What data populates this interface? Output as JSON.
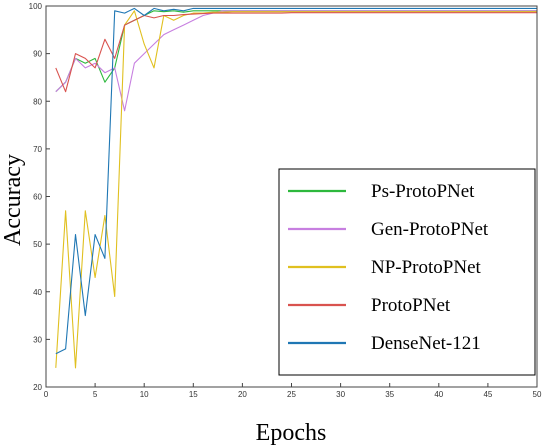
{
  "chart_data": {
    "type": "line",
    "title": "",
    "xlabel": "Epochs",
    "ylabel": "Accuracy",
    "xlim": [
      0,
      50
    ],
    "ylim": [
      20,
      100
    ],
    "xticks": [
      0,
      5,
      10,
      15,
      20,
      25,
      30,
      35,
      40,
      45,
      50
    ],
    "yticks": [
      20,
      30,
      40,
      50,
      60,
      70,
      80,
      90,
      100
    ],
    "grid": false,
    "legend_position": "bottom-right",
    "series": [
      {
        "name": "Ps-ProtoPNet",
        "color": "#2db83d",
        "x": [
          1,
          2,
          3,
          4,
          5,
          6,
          7,
          8,
          9,
          10,
          11,
          12,
          13,
          14,
          15,
          16,
          17,
          18,
          19,
          20,
          21,
          22,
          23,
          24,
          25,
          26,
          27,
          28,
          29,
          30,
          31,
          32,
          33,
          34,
          35,
          36,
          37,
          38,
          39,
          40,
          41,
          42,
          43,
          44,
          45,
          46,
          47,
          48,
          49,
          50
        ],
        "y": [
          82,
          84,
          89,
          88,
          89,
          84,
          87,
          96,
          97,
          98,
          99,
          98.8,
          99,
          98.7,
          99,
          99,
          99,
          99,
          99,
          99,
          99,
          99,
          99,
          99,
          99,
          99,
          99,
          99,
          99,
          99,
          99,
          99,
          99,
          99,
          99,
          99,
          99,
          99,
          99,
          99,
          99,
          99,
          99,
          99,
          99,
          99,
          99,
          99,
          99,
          99
        ]
      },
      {
        "name": "Gen-ProtoPNet",
        "color": "#c77fe0",
        "x": [
          1,
          2,
          3,
          4,
          5,
          6,
          7,
          8,
          9,
          10,
          11,
          12,
          13,
          14,
          15,
          16,
          17,
          18,
          19,
          20,
          21,
          22,
          23,
          24,
          25,
          26,
          27,
          28,
          29,
          30,
          31,
          32,
          33,
          34,
          35,
          36,
          37,
          38,
          39,
          40,
          41,
          42,
          43,
          44,
          45,
          46,
          47,
          48,
          49,
          50
        ],
        "y": [
          82,
          84,
          89,
          87,
          88,
          86,
          87,
          78,
          88,
          90,
          92,
          94,
          95,
          96,
          97,
          98,
          98.5,
          99,
          99,
          99,
          99,
          99,
          99,
          99,
          99,
          99,
          99,
          99,
          99,
          99,
          99,
          99,
          99,
          99,
          99,
          99,
          99,
          99,
          99,
          99,
          99,
          99,
          99,
          99,
          99,
          99,
          99,
          99,
          99,
          99
        ]
      },
      {
        "name": "NP-ProtoPNet",
        "color": "#e0c020",
        "x": [
          1,
          2,
          3,
          4,
          5,
          6,
          7,
          8,
          9,
          10,
          11,
          12,
          13,
          14,
          15,
          16,
          17,
          18,
          19,
          20,
          21,
          22,
          23,
          24,
          25,
          26,
          27,
          28,
          29,
          30,
          31,
          32,
          33,
          34,
          35,
          36,
          37,
          38,
          39,
          40,
          41,
          42,
          43,
          44,
          45,
          46,
          47,
          48,
          49,
          50
        ],
        "y": [
          24,
          57,
          24,
          57,
          43,
          56,
          39,
          96,
          99,
          92,
          87,
          98,
          97,
          98,
          98.5,
          98.5,
          98.7,
          98.7,
          98.8,
          98.8,
          98.8,
          98.8,
          98.8,
          98.8,
          98.8,
          98.8,
          98.8,
          98.8,
          98.8,
          98.8,
          98.8,
          98.8,
          98.8,
          98.8,
          98.8,
          98.8,
          98.8,
          98.8,
          98.8,
          98.8,
          98.8,
          98.8,
          98.8,
          98.8,
          98.8,
          98.8,
          98.8,
          98.8,
          98.8,
          98.8
        ]
      },
      {
        "name": "ProtoPNet",
        "color": "#d9534f",
        "x": [
          1,
          2,
          3,
          4,
          5,
          6,
          7,
          8,
          9,
          10,
          11,
          12,
          13,
          14,
          15,
          16,
          17,
          18,
          19,
          20,
          21,
          22,
          23,
          24,
          25,
          26,
          27,
          28,
          29,
          30,
          31,
          32,
          33,
          34,
          35,
          36,
          37,
          38,
          39,
          40,
          41,
          42,
          43,
          44,
          45,
          46,
          47,
          48,
          49,
          50
        ],
        "y": [
          87,
          82,
          90,
          89,
          87,
          93,
          89,
          96,
          97,
          98,
          97.5,
          98,
          98,
          98.2,
          98.3,
          98.4,
          98.5,
          98.5,
          98.5,
          98.5,
          98.5,
          98.5,
          98.5,
          98.5,
          98.6,
          98.6,
          98.6,
          98.6,
          98.6,
          98.6,
          98.6,
          98.6,
          98.6,
          98.6,
          98.6,
          98.6,
          98.6,
          98.6,
          98.6,
          98.6,
          98.6,
          98.6,
          98.6,
          98.6,
          98.6,
          98.6,
          98.6,
          98.6,
          98.6,
          98.6
        ]
      },
      {
        "name": "DenseNet-121",
        "color": "#1f77b4",
        "x": [
          1,
          2,
          3,
          4,
          5,
          6,
          7,
          8,
          9,
          10,
          11,
          12,
          13,
          14,
          15,
          16,
          17,
          18,
          19,
          20,
          21,
          22,
          23,
          24,
          25,
          26,
          27,
          28,
          29,
          30,
          31,
          32,
          33,
          34,
          35,
          36,
          37,
          38,
          39,
          40,
          41,
          42,
          43,
          44,
          45,
          46,
          47,
          48,
          49,
          50
        ],
        "y": [
          27,
          28,
          52,
          35,
          52,
          47,
          99,
          98.5,
          99.5,
          98,
          99.5,
          99,
          99.3,
          99,
          99.5,
          99.5,
          99.5,
          99.5,
          99.5,
          99.5,
          99.5,
          99.5,
          99.5,
          99.5,
          99.5,
          99.5,
          99.5,
          99.5,
          99.5,
          99.5,
          99.5,
          99.5,
          99.5,
          99.5,
          99.5,
          99.5,
          99.5,
          99.5,
          99.5,
          99.5,
          99.5,
          99.5,
          99.5,
          99.5,
          99.5,
          99.5,
          99.5,
          99.5,
          99.5,
          99.5
        ]
      }
    ]
  }
}
